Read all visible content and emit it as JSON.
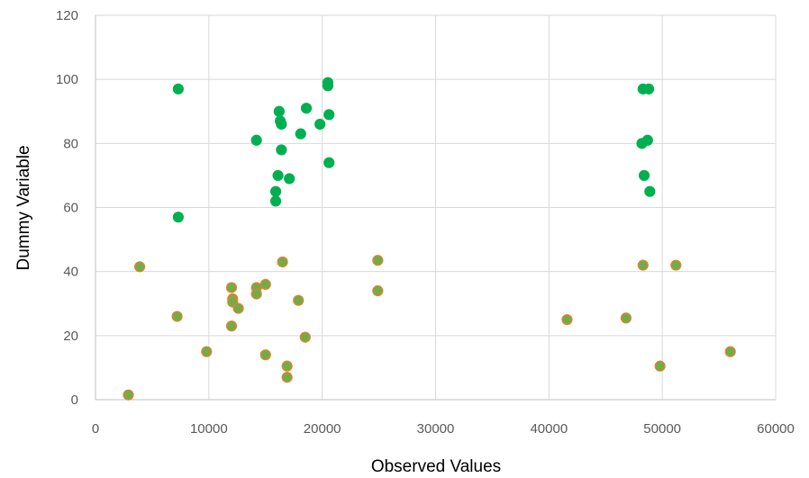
{
  "chart_data": {
    "type": "scatter",
    "title": "",
    "xlabel": "Observed Values",
    "ylabel": "Dummy Variable",
    "xlim": [
      0,
      60000
    ],
    "ylim": [
      0,
      120
    ],
    "x_ticks": [
      0,
      10000,
      20000,
      30000,
      40000,
      50000,
      60000
    ],
    "y_ticks": [
      0,
      20,
      40,
      60,
      80,
      100,
      120
    ],
    "x_tick_labels": [
      "0",
      "10000",
      "20000",
      "30000",
      "40000",
      "50000",
      "60000"
    ],
    "y_tick_labels": [
      "0",
      "20",
      "40",
      "60",
      "80",
      "100",
      "120"
    ],
    "grid": true,
    "legend": "none",
    "colors": {
      "green": "#00B050",
      "orange_fill": "#70AD47",
      "orange_edge": "#ED7D31",
      "grid": "#D9D9D9",
      "axis": "#BFBFBF"
    },
    "series": [
      {
        "color": "#00B050",
        "edge": "#00B050",
        "points": [
          [
            7300,
            97
          ],
          [
            7300,
            57
          ],
          [
            14200,
            81
          ],
          [
            15900,
            65
          ],
          [
            15900,
            62
          ],
          [
            16100,
            70
          ],
          [
            16200,
            90
          ],
          [
            16300,
            87
          ],
          [
            16400,
            86
          ],
          [
            16400,
            78
          ],
          [
            17100,
            69
          ],
          [
            18100,
            83
          ],
          [
            18600,
            91
          ],
          [
            19800,
            86
          ],
          [
            20500,
            99
          ],
          [
            20500,
            98
          ],
          [
            20600,
            89
          ],
          [
            20600,
            74
          ],
          [
            48300,
            97
          ],
          [
            48800,
            97
          ],
          [
            48200,
            80
          ],
          [
            48700,
            81
          ],
          [
            48400,
            70
          ],
          [
            48900,
            65
          ]
        ]
      },
      {
        "color": "#70AD47",
        "edge": "#ED7D31",
        "points": [
          [
            2900,
            1.5
          ],
          [
            3900,
            41.5
          ],
          [
            7200,
            26
          ],
          [
            9800,
            15
          ],
          [
            12000,
            35
          ],
          [
            12100,
            31.5
          ],
          [
            12100,
            30.5
          ],
          [
            12000,
            23
          ],
          [
            12600,
            28.5
          ],
          [
            14200,
            35
          ],
          [
            14200,
            33
          ],
          [
            15000,
            36
          ],
          [
            15000,
            14
          ],
          [
            16500,
            43
          ],
          [
            16900,
            10.5
          ],
          [
            16900,
            7
          ],
          [
            17900,
            31
          ],
          [
            18500,
            19.5
          ],
          [
            24900,
            43.5
          ],
          [
            24900,
            34
          ],
          [
            41600,
            25
          ],
          [
            46800,
            25.5
          ],
          [
            48300,
            42
          ],
          [
            49800,
            10.5
          ],
          [
            51200,
            42
          ],
          [
            56000,
            15
          ]
        ]
      }
    ]
  }
}
